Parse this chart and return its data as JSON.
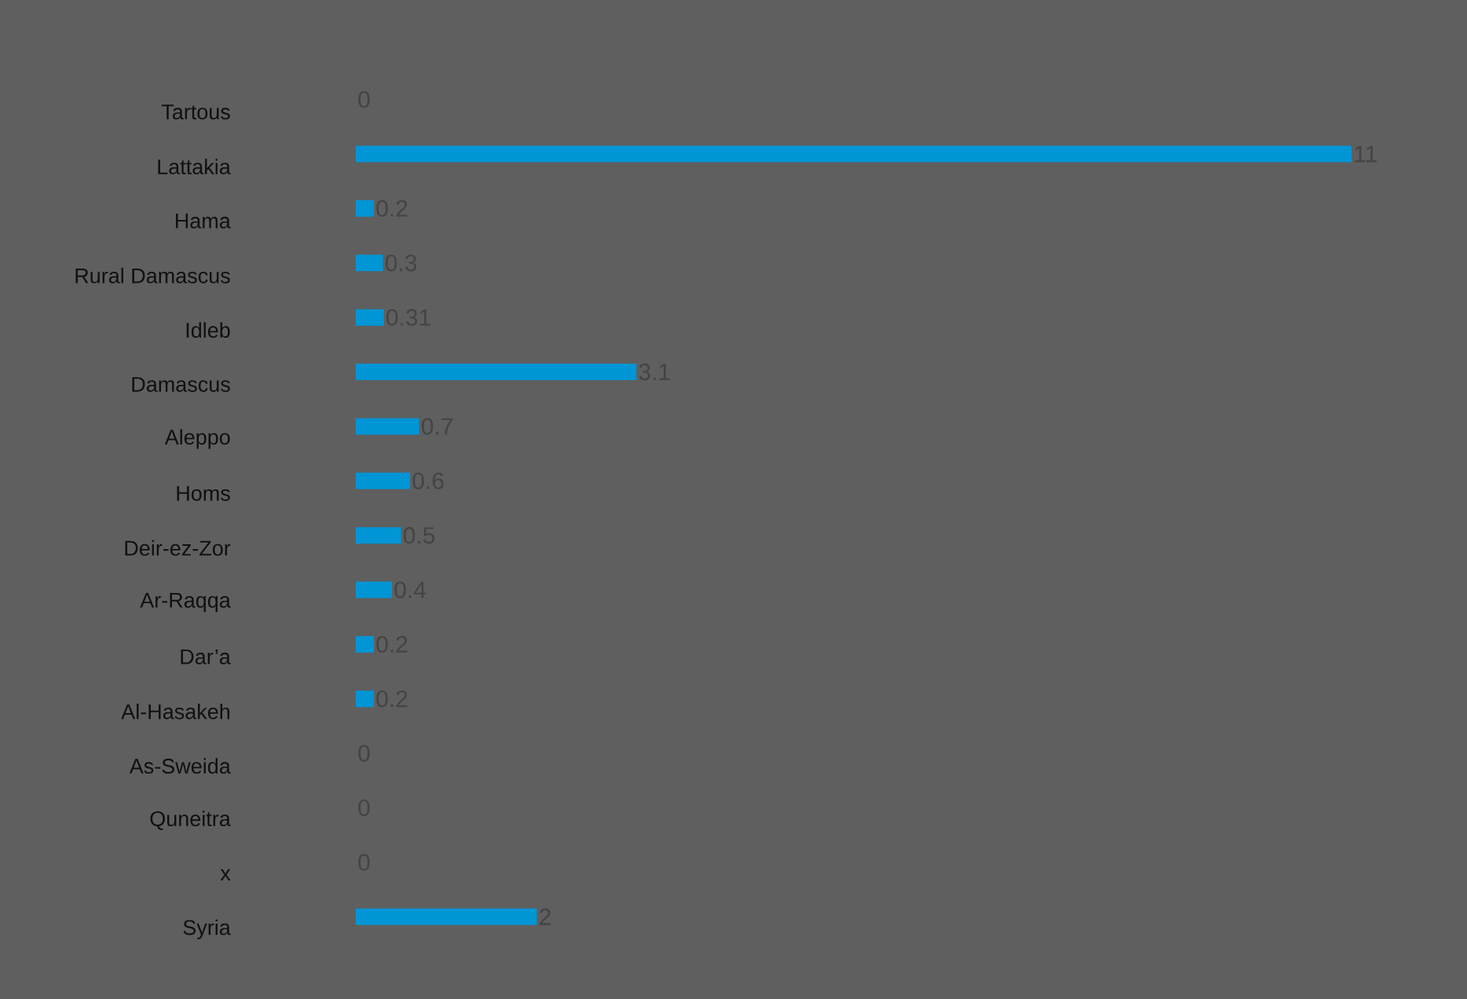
{
  "chart_data": {
    "type": "bar",
    "orientation": "horizontal",
    "categories": [
      "Tartous",
      "Lattakia",
      "Hama",
      "Rural Damascus",
      "Idleb",
      "Damascus",
      "Aleppo",
      "Homs",
      "Deir-ez-Zor",
      "Ar-Raqqa",
      "Dar’a",
      "Al-Hasakeh",
      "As-Sweida",
      "Quneitra",
      "x",
      "Syria"
    ],
    "values": [
      0,
      11,
      0.2,
      0.3,
      0.31,
      3.1,
      0.7,
      0.6,
      0.5,
      0.4,
      0.2,
      0.2,
      0,
      0,
      0,
      2
    ],
    "color": "#0095d5",
    "data_labels": true
  }
}
